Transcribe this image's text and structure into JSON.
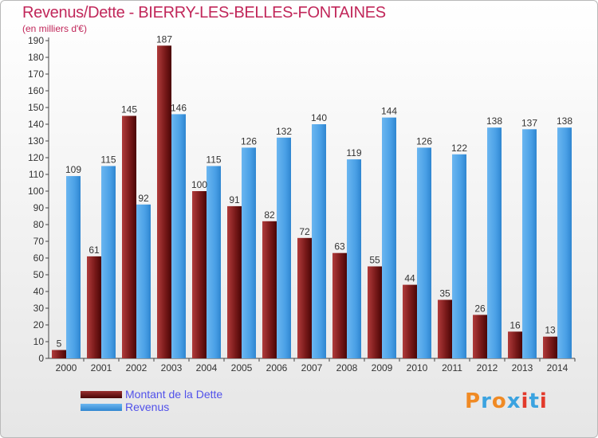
{
  "title": "Revenus/Dette - BIERRY-LES-BELLES-FONTAINES",
  "subtitle": "(en milliers d'€)",
  "logo": {
    "text": "Proxiti"
  },
  "chart_data": {
    "type": "bar",
    "title": "Revenus/Dette - BIERRY-LES-BELLES-FONTAINES",
    "ylabel": "(en milliers d'€)",
    "xlabel": "",
    "ylim": [
      0,
      190
    ],
    "ytick_step": 10,
    "grid": false,
    "legend_position": "bottom-left",
    "categories": [
      "2000",
      "2001",
      "2002",
      "2003",
      "2004",
      "2005",
      "2006",
      "2007",
      "2008",
      "2009",
      "2010",
      "2011",
      "2012",
      "2013",
      "2014"
    ],
    "series": [
      {
        "name": "Montant de la Dette",
        "color": "#7a1212",
        "values": [
          5,
          61,
          145,
          187,
          100,
          91,
          82,
          72,
          63,
          55,
          44,
          35,
          26,
          16,
          13
        ]
      },
      {
        "name": "Revenus",
        "color": "#4aa0e6",
        "values": [
          109,
          115,
          92,
          146,
          115,
          126,
          132,
          140,
          119,
          144,
          126,
          122,
          138,
          137,
          138
        ]
      }
    ]
  }
}
